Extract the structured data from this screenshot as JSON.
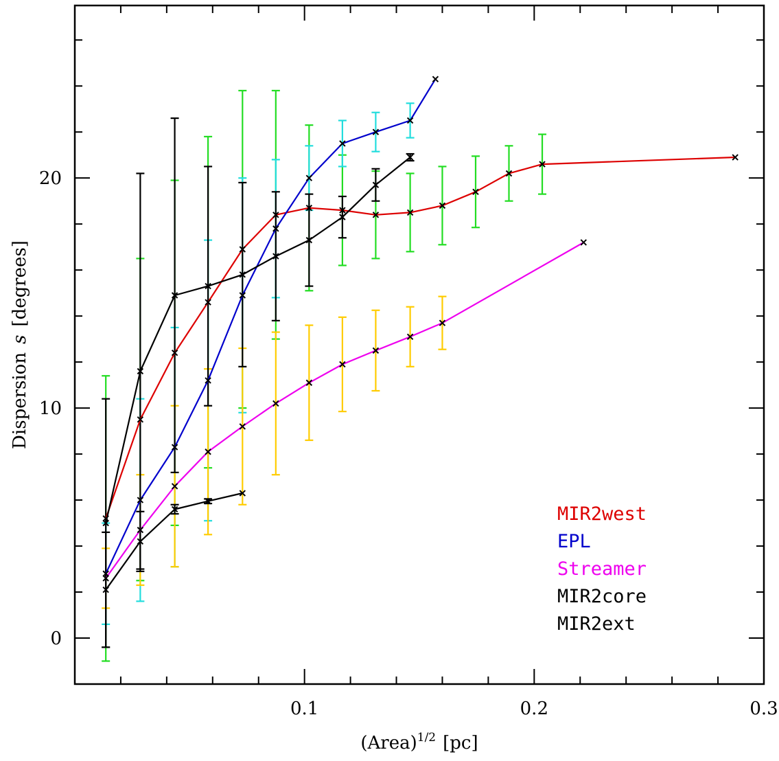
{
  "chart_data": {
    "type": "line",
    "title": "",
    "xlabel": "(Area)",
    "xlabel_sup": "1/2",
    "xlabel_unit": "[pc]",
    "ylabel": "Dispersion",
    "ylabel_symbol": "s",
    "ylabel_unit": "[degrees]",
    "xlim": [
      0.0,
      0.3
    ],
    "ylim": [
      -2,
      27.5
    ],
    "xticks": [
      {
        "v": 0.1,
        "label": "0.1"
      },
      {
        "v": 0.2,
        "label": "0.2"
      },
      {
        "v": 0.3,
        "label": "0.3"
      }
    ],
    "yticks": [
      {
        "v": 0,
        "label": "0"
      },
      {
        "v": 10,
        "label": "10"
      },
      {
        "v": 20,
        "label": "20"
      }
    ],
    "series": [
      {
        "name": "MIR2west",
        "color": "#dd0000",
        "err_color": "#22dd22",
        "x": [
          0.0135,
          0.0285,
          0.0435,
          0.058,
          0.073,
          0.0875,
          0.102,
          0.1165,
          0.131,
          0.146,
          0.16,
          0.1745,
          0.189,
          0.2035,
          0.2875
        ],
        "y": [
          5.2,
          9.5,
          12.4,
          14.6,
          16.9,
          18.4,
          18.7,
          18.6,
          18.4,
          18.5,
          18.8,
          19.4,
          20.2,
          20.6,
          20.9
        ],
        "err": [
          6.2,
          7.0,
          7.5,
          7.2,
          6.9,
          5.4,
          3.6,
          2.4,
          1.9,
          1.7,
          1.7,
          1.55,
          1.2,
          1.3,
          0.0
        ]
      },
      {
        "name": "EPL",
        "color": "#0000cc",
        "err_color": "#22dddd",
        "x": [
          0.0135,
          0.0285,
          0.0435,
          0.058,
          0.073,
          0.0875,
          0.102,
          0.1165,
          0.131,
          0.146,
          0.157
        ],
        "y": [
          2.8,
          6.0,
          8.3,
          11.2,
          14.9,
          17.8,
          20.0,
          21.5,
          22.0,
          22.5,
          24.3
        ],
        "err": [
          2.2,
          4.4,
          5.2,
          6.1,
          5.1,
          3.0,
          1.4,
          1.0,
          0.85,
          0.75,
          0.0
        ]
      },
      {
        "name": "Streamer",
        "color": "#ee00ee",
        "err_color": "#ffcc00",
        "x": [
          0.0135,
          0.0285,
          0.0435,
          0.058,
          0.073,
          0.0875,
          0.102,
          0.1165,
          0.131,
          0.146,
          0.16,
          0.2215
        ],
        "y": [
          2.6,
          4.7,
          6.6,
          8.1,
          9.2,
          10.2,
          11.1,
          11.9,
          12.5,
          13.1,
          13.7,
          17.2
        ],
        "err": [
          1.3,
          2.4,
          3.5,
          3.6,
          3.4,
          3.1,
          2.5,
          2.05,
          1.75,
          1.3,
          1.15,
          0.0
        ]
      },
      {
        "name": "MIR2core",
        "color": "#000000",
        "err_color": "#000000",
        "x": [
          0.0135,
          0.0285,
          0.0435,
          0.058,
          0.073,
          0.0875,
          0.102,
          0.1165,
          0.131,
          0.146
        ],
        "y": [
          5.0,
          11.6,
          14.9,
          15.3,
          15.8,
          16.6,
          17.3,
          18.3,
          19.7,
          20.9
        ],
        "err": [
          5.4,
          8.6,
          7.7,
          5.2,
          4.0,
          2.8,
          2.0,
          0.9,
          0.7,
          0.15
        ]
      },
      {
        "name": "MIR2ext",
        "color": "#000000",
        "err_color": "#000000",
        "x": [
          0.0135,
          0.0285,
          0.0435,
          0.058,
          0.073
        ],
        "y": [
          2.1,
          4.2,
          5.6,
          5.95,
          6.3
        ],
        "err": [
          2.5,
          1.3,
          0.2,
          0.1,
          0.0
        ]
      }
    ],
    "legend": [
      {
        "label": "MIR2west",
        "color": "#dd0000"
      },
      {
        "label": "EPL",
        "color": "#0000cc"
      },
      {
        "label": "Streamer",
        "color": "#ee00ee"
      },
      {
        "label": "MIR2core",
        "color": "#000000"
      },
      {
        "label": "MIR2ext",
        "color": "#000000"
      }
    ],
    "legend_position": "bottom-right"
  }
}
